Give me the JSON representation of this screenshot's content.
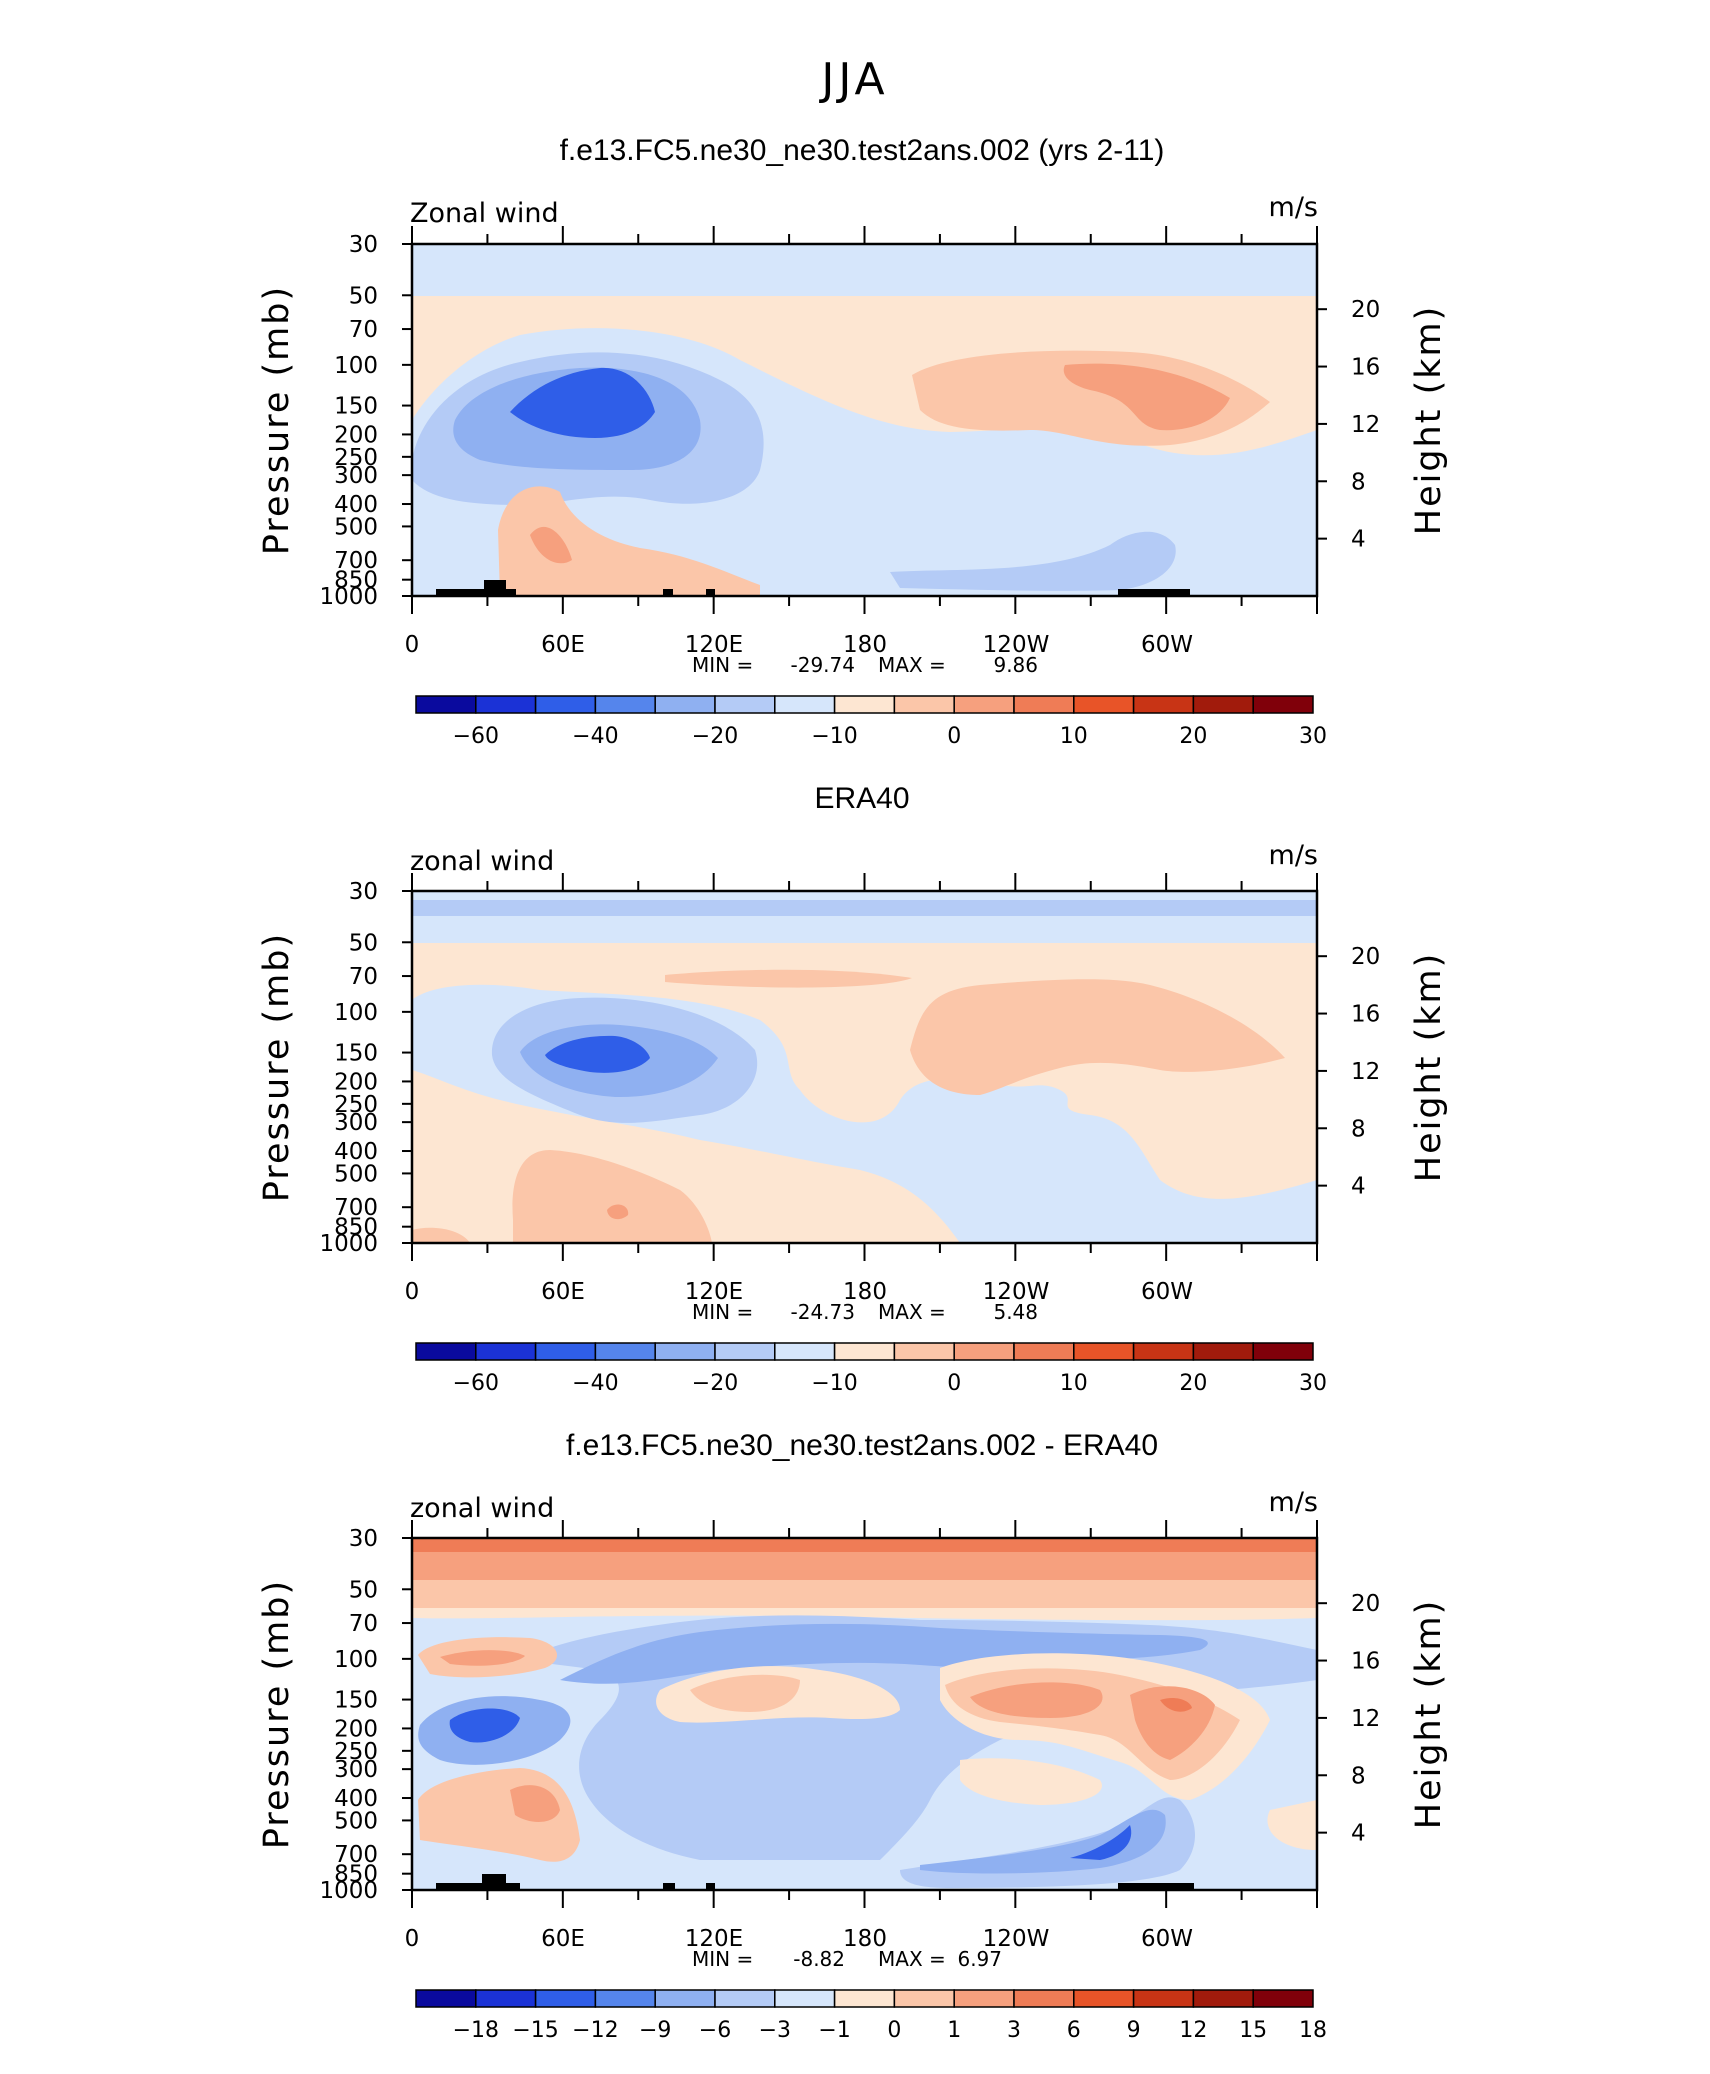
{
  "figure": {
    "title": "JJA"
  },
  "colors": {
    "filled_contour_palette": [
      "#0a0a9e",
      "#1b32d6",
      "#2f5ee8",
      "#5585ec",
      "#8fb0f1",
      "#b4cbf6",
      "#d6e6fb",
      "#fde6d2",
      "#fbc6a9",
      "#f6a07e",
      "#ef7c56",
      "#e85428",
      "#c83415",
      "#a11b0c",
      "#80000a"
    ],
    "topography": "#000000"
  },
  "chart_data": [
    {
      "type": "heatmap",
      "title": "f.e13.FC5.ne30_ne30.test2ans.002 (yrs 2-11)",
      "variable_label": "Zonal wind",
      "units": "m/s",
      "xticks": [
        "0",
        "60E",
        "120E",
        "180",
        "120W",
        "60W"
      ],
      "yticks_pressure": [
        "30",
        "50",
        "70",
        "100",
        "150",
        "200",
        "250",
        "300",
        "400",
        "500",
        "700",
        "850",
        "1000"
      ],
      "yticks_height": [
        "20",
        "16",
        "12",
        "8",
        "4"
      ],
      "ylabel_left": "Pressure  (mb)",
      "ylabel_right": "Height  (km)",
      "stats": {
        "min_label": "MIN =",
        "min": "-29.74",
        "max_label": "MAX =",
        "max": "9.86"
      },
      "colorbar": {
        "levels": [
          "-60",
          "-40",
          "-20",
          "-10",
          "0",
          "10",
          "20",
          "30"
        ],
        "label_every_other_box": true
      },
      "field_features": [
        {
          "lon": 80,
          "p": 150,
          "value_range": "-30 to -25",
          "desc": "easterly jet core"
        },
        {
          "lon": 255,
          "p": 150,
          "value_range": "5 to 10"
        },
        {
          "lon": 52,
          "p": 600,
          "value_range": "5 to 10"
        }
      ]
    },
    {
      "type": "heatmap",
      "title": "ERA40",
      "variable_label": "zonal wind",
      "units": "m/s",
      "xticks": [
        "0",
        "60E",
        "120E",
        "180",
        "120W",
        "60W"
      ],
      "yticks_pressure": [
        "30",
        "50",
        "70",
        "100",
        "150",
        "200",
        "250",
        "300",
        "400",
        "500",
        "700",
        "850",
        "1000"
      ],
      "yticks_height": [
        "20",
        "16",
        "12",
        "8",
        "4"
      ],
      "ylabel_left": "Pressure  (mb)",
      "ylabel_right": "Height  (km)",
      "stats": {
        "min_label": "MIN =",
        "min": "-24.73",
        "max_label": "MAX =",
        "max": "5.48"
      },
      "colorbar": {
        "levels": [
          "-60",
          "-40",
          "-20",
          "-10",
          "0",
          "10",
          "20",
          "30"
        ],
        "label_every_other_box": true
      },
      "field_features": [
        {
          "lon": 78,
          "p": 150,
          "value_range": "-25 to -20"
        },
        {
          "lon": 235,
          "p": 140,
          "value_range": "0 to 5"
        }
      ]
    },
    {
      "type": "heatmap",
      "title": "f.e13.FC5.ne30_ne30.test2ans.002 - ERA40",
      "variable_label": "zonal wind",
      "units": "m/s",
      "xticks": [
        "0",
        "60E",
        "120E",
        "180",
        "120W",
        "60W"
      ],
      "yticks_pressure": [
        "30",
        "50",
        "70",
        "100",
        "150",
        "200",
        "250",
        "300",
        "400",
        "500",
        "700",
        "850",
        "1000"
      ],
      "yticks_height": [
        "20",
        "16",
        "12",
        "8",
        "4"
      ],
      "ylabel_left": "Pressure  (mb)",
      "ylabel_right": "Height  (km)",
      "stats": {
        "min_label": "MIN =",
        "min": "-8.82",
        "max_label": "MAX =",
        "max": "6.97"
      },
      "colorbar": {
        "levels": [
          "-18",
          "-15",
          "-12",
          "-9",
          "-6",
          "-3",
          "-1",
          "0",
          "1",
          "3",
          "6",
          "9",
          "12",
          "15",
          "18"
        ],
        "label_every_other_box": false
      },
      "field_features": [
        {
          "lon": 0,
          "p": 30,
          "value_range": "3 to 9",
          "desc": "top band"
        },
        {
          "lon": 240,
          "p": 150,
          "value_range": "3 to 6"
        },
        {
          "lon": 300,
          "p": 150,
          "value_range": "6 to 9"
        },
        {
          "lon": 245,
          "p": 650,
          "value_range": "-9 to -6"
        }
      ]
    }
  ]
}
